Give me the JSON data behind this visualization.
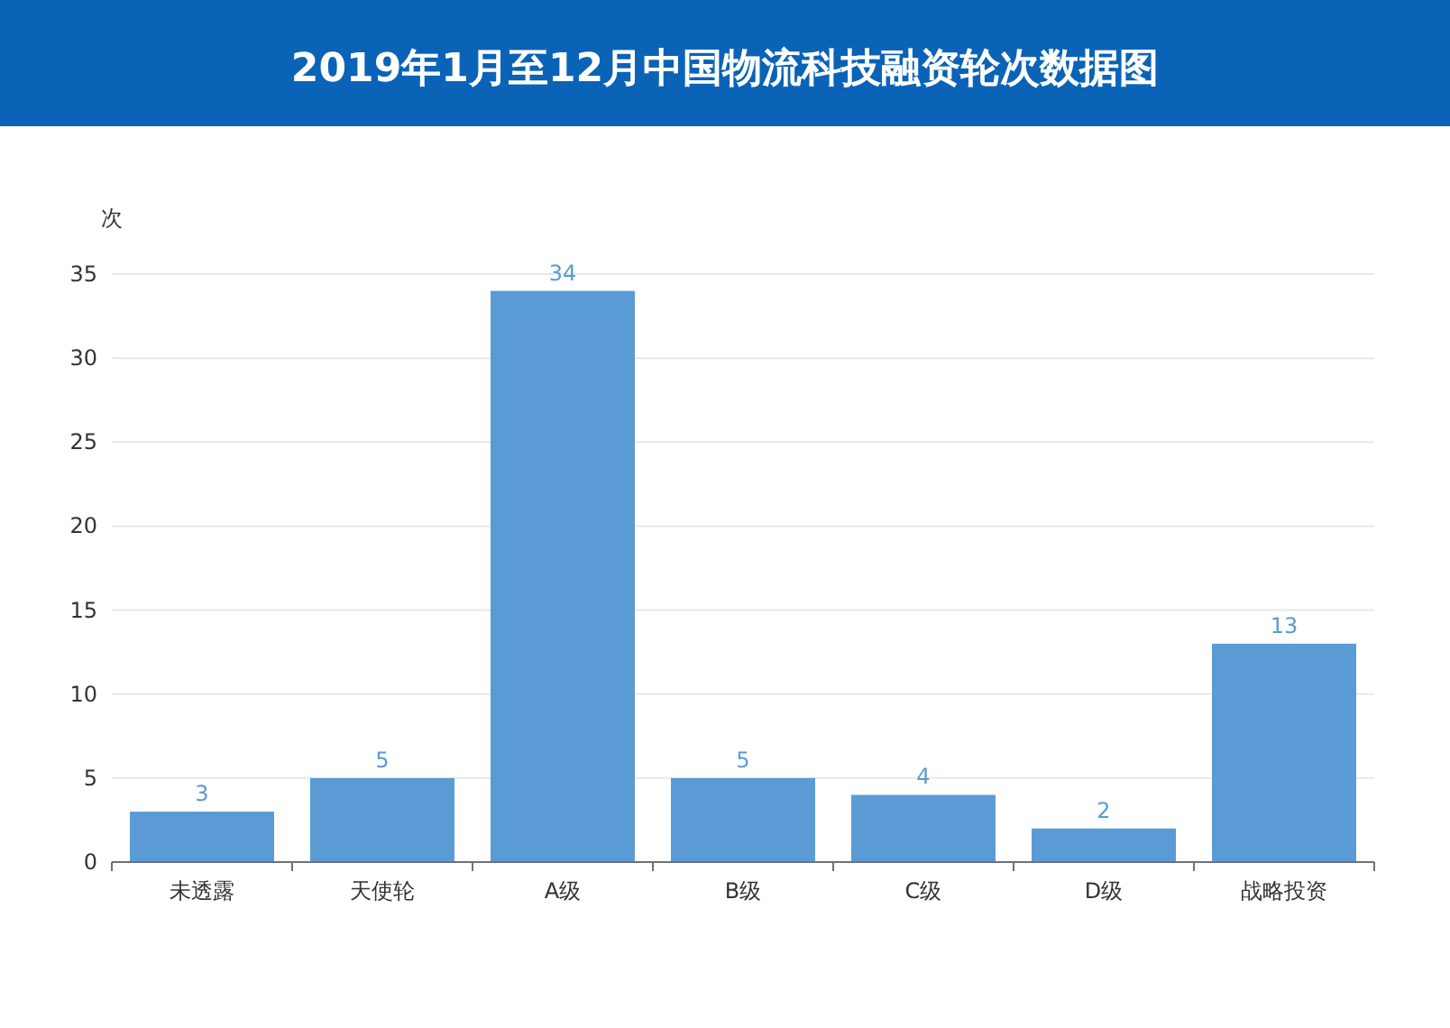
{
  "chart_data": {
    "type": "bar",
    "title": "2019年1月至12月中国物流科技融资轮次数据图",
    "ylabel": "次",
    "categories": [
      "未透露",
      "天使轮",
      "A级",
      "B级",
      "C级",
      "D级",
      "战略投资"
    ],
    "values": [
      3,
      5,
      34,
      5,
      4,
      2,
      13
    ],
    "color": "#5b9bd5",
    "ylim": [
      0,
      35
    ],
    "yticks": [
      0,
      5,
      10,
      15,
      20,
      25,
      30,
      35
    ],
    "grid": "y",
    "data_labels": true
  }
}
